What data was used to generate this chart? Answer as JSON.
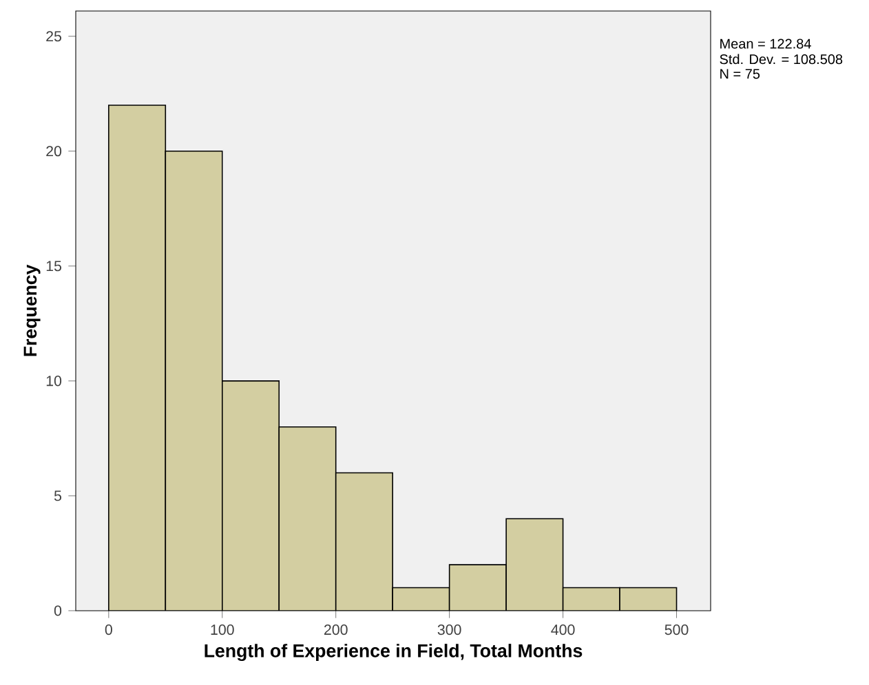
{
  "chart_data": {
    "type": "histogram",
    "xlabel": "Length of Experience in Field, Total Months",
    "ylabel": "Frequency",
    "bins": [
      0,
      50,
      100,
      150,
      200,
      250,
      300,
      350,
      400,
      450,
      500
    ],
    "values": [
      22,
      20,
      10,
      8,
      6,
      1,
      2,
      4,
      1,
      1
    ],
    "color": "#d3cea1",
    "xlim": [
      -29,
      530
    ],
    "ylim": [
      0,
      26.1
    ],
    "xticks": [
      0,
      100,
      200,
      300,
      400,
      500
    ],
    "yticks": [
      0,
      5,
      10,
      15,
      20,
      25
    ],
    "annotations": [
      "Mean = 122.84",
      "Std. Dev. = 108.508",
      "N = 75"
    ]
  }
}
